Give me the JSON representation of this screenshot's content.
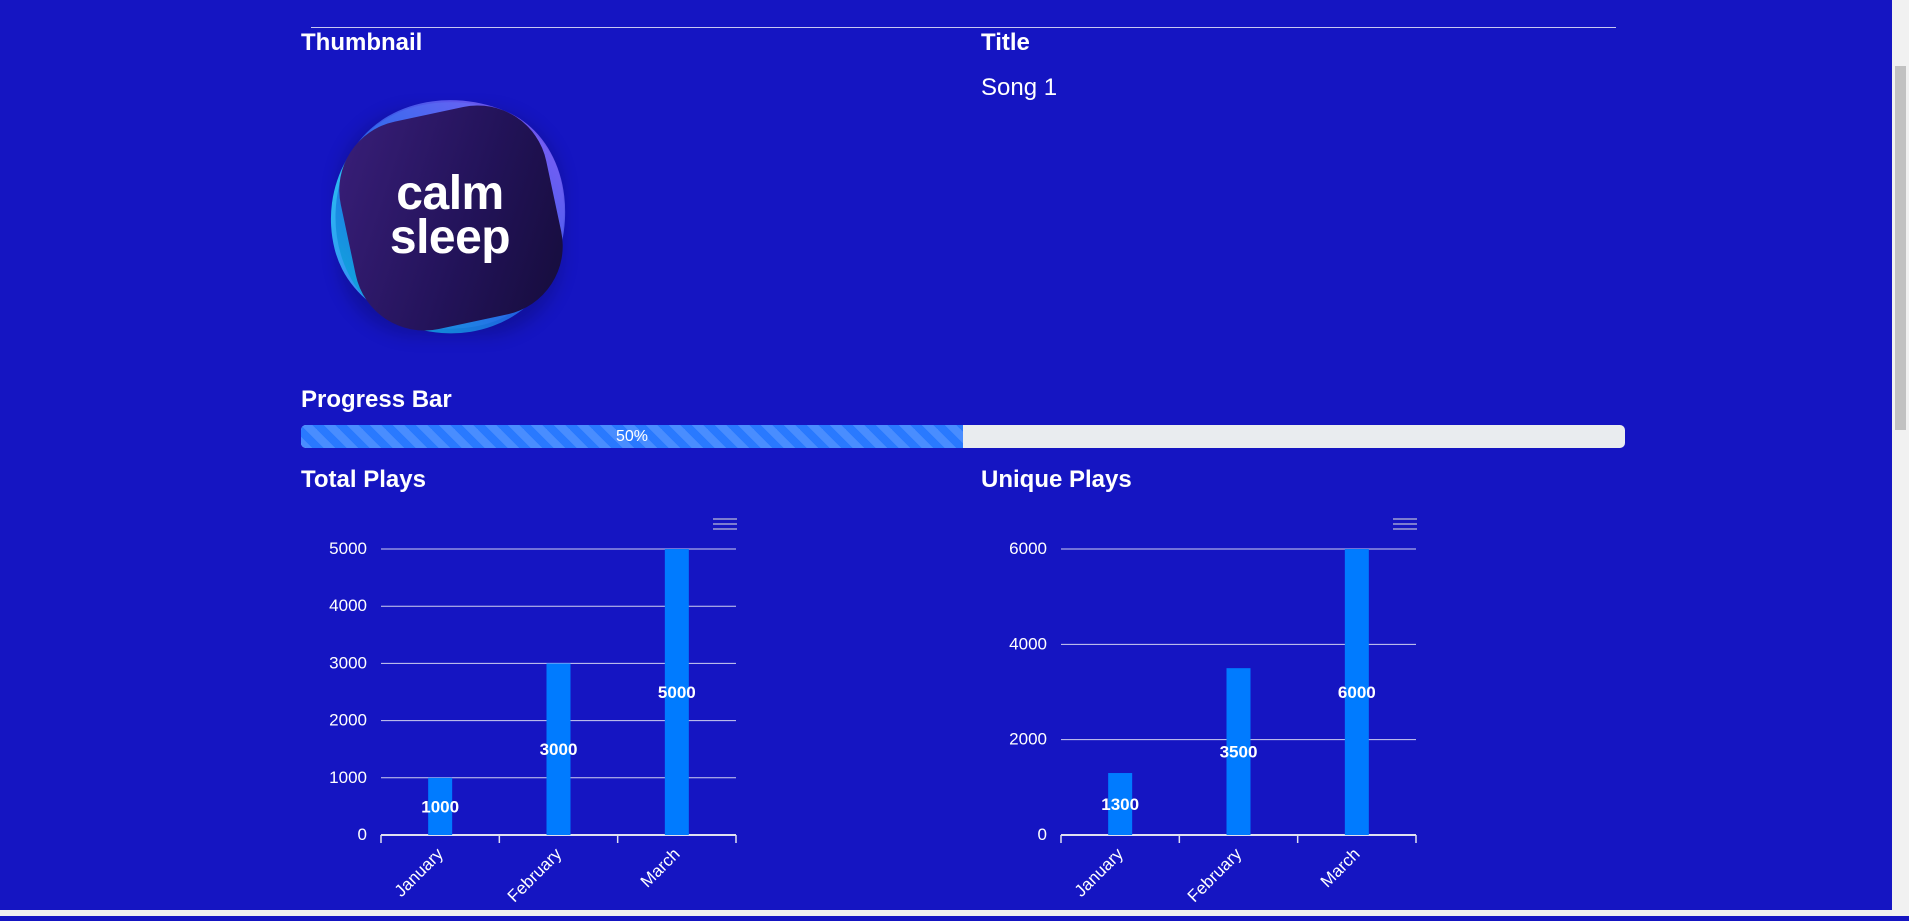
{
  "headings": {
    "thumbnail": "Thumbnail",
    "title": "Title",
    "progress_bar": "Progress Bar",
    "total_plays": "Total Plays",
    "unique_plays": "Unique Plays"
  },
  "song": {
    "title": "Song 1",
    "thumbnail_text_line1": "calm",
    "thumbnail_text_line2": "sleep"
  },
  "progress": {
    "value": 0.5,
    "label": "50%"
  },
  "colors": {
    "background": "#1515c2",
    "bar": "#007bff",
    "progress_fill": "#2979ff"
  },
  "chart_data": [
    {
      "type": "bar",
      "title": "Total Plays",
      "categories": [
        "January",
        "February",
        "March"
      ],
      "values": [
        1000,
        3000,
        5000
      ],
      "ylim": [
        0,
        5000
      ],
      "yticks": [
        0,
        1000,
        2000,
        3000,
        4000,
        5000
      ],
      "data_labels": true,
      "grid": true
    },
    {
      "type": "bar",
      "title": "Unique Plays",
      "categories": [
        "January",
        "February",
        "March"
      ],
      "values": [
        1300,
        3500,
        6000
      ],
      "ylim": [
        0,
        6000
      ],
      "yticks": [
        0,
        2000,
        4000,
        6000
      ],
      "data_labels": true,
      "grid": true
    }
  ],
  "icons": {
    "chart_menu": "hamburger-menu-icon"
  }
}
